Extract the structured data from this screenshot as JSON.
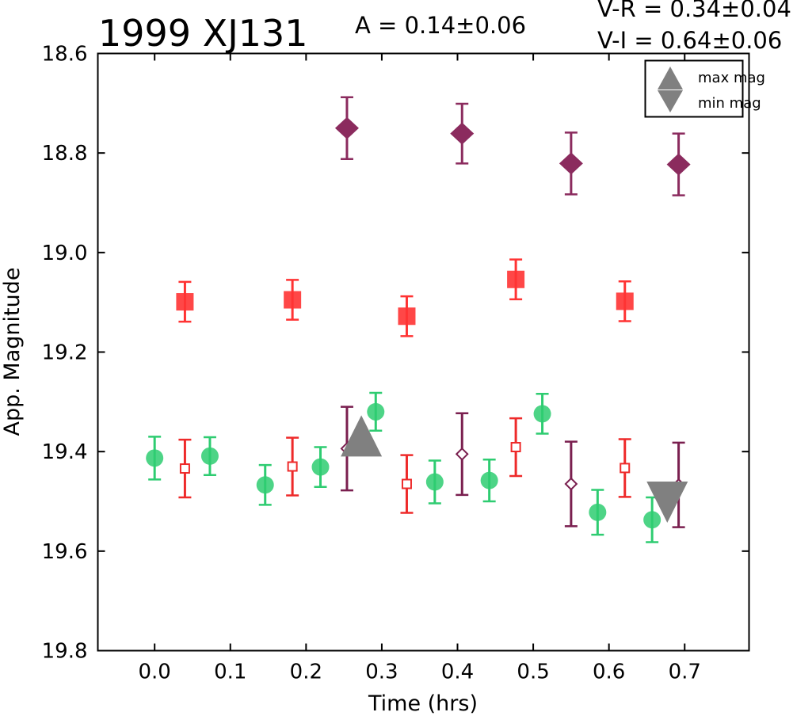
{
  "chart_data": {
    "type": "scatter",
    "title": "1999 XJ131",
    "annotations": {
      "amplitude": "A  = 0.14±0.06",
      "v_r": "V-R = 0.34±0.04",
      "v_i": "V-I  = 0.64±0.06"
    },
    "xlabel": "Time (hrs)",
    "ylabel": "App. Magnitude",
    "xlim": [
      -0.075,
      0.785
    ],
    "ylim": [
      18.6,
      19.8
    ],
    "y_inverted": true,
    "grid": false,
    "xticks": [
      0.0,
      0.1,
      0.2,
      0.3,
      0.4,
      0.5,
      0.6,
      0.7
    ],
    "xtick_labels": [
      "0.0",
      "0.1",
      "0.2",
      "0.3",
      "0.4",
      "0.5",
      "0.6",
      "0.7"
    ],
    "yticks": [
      18.6,
      18.8,
      19.0,
      19.2,
      19.4,
      19.6,
      19.8
    ],
    "ytick_labels": [
      "18.6",
      "18.8",
      "19.0",
      "19.2",
      "19.4",
      "19.6",
      "19.8"
    ],
    "legend": {
      "placement": "top-right",
      "entries": [
        {
          "label": "max mag",
          "marker": "triangle-up"
        },
        {
          "label": "min mag",
          "marker": "triangle-down"
        }
      ]
    },
    "series": [
      {
        "marker": "circle",
        "color": "#2ecc71",
        "points": [
          {
            "x": 0.0,
            "y": 19.413,
            "err": 0.043
          },
          {
            "x": 0.073,
            "y": 19.409,
            "err": 0.038
          },
          {
            "x": 0.146,
            "y": 19.467,
            "err": 0.04
          },
          {
            "x": 0.219,
            "y": 19.431,
            "err": 0.04
          },
          {
            "x": 0.292,
            "y": 19.32,
            "err": 0.038
          },
          {
            "x": 0.37,
            "y": 19.461,
            "err": 0.043
          },
          {
            "x": 0.442,
            "y": 19.458,
            "err": 0.042
          },
          {
            "x": 0.512,
            "y": 19.324,
            "err": 0.04
          },
          {
            "x": 0.585,
            "y": 19.522,
            "err": 0.045
          },
          {
            "x": 0.657,
            "y": 19.537,
            "err": 0.045
          }
        ]
      },
      {
        "marker": "square",
        "color": "#ff3333",
        "points": [
          {
            "x": 0.04,
            "y": 19.099,
            "err": 0.04
          },
          {
            "x": 0.182,
            "y": 19.095,
            "err": 0.04
          },
          {
            "x": 0.333,
            "y": 19.128,
            "err": 0.04
          },
          {
            "x": 0.477,
            "y": 19.054,
            "err": 0.04
          },
          {
            "x": 0.621,
            "y": 19.098,
            "err": 0.04
          }
        ]
      },
      {
        "marker": "square-open",
        "color": "#ee2a2a",
        "points": [
          {
            "x": 0.04,
            "y": 19.434,
            "err": 0.058
          },
          {
            "x": 0.182,
            "y": 19.43,
            "err": 0.058
          },
          {
            "x": 0.333,
            "y": 19.465,
            "err": 0.058
          },
          {
            "x": 0.477,
            "y": 19.391,
            "err": 0.058
          },
          {
            "x": 0.621,
            "y": 19.433,
            "err": 0.058
          }
        ]
      },
      {
        "marker": "diamond",
        "color": "#8b2b5e",
        "points": [
          {
            "x": 0.254,
            "y": 18.75,
            "err": 0.062
          },
          {
            "x": 0.406,
            "y": 18.761,
            "err": 0.06
          },
          {
            "x": 0.55,
            "y": 18.821,
            "err": 0.062
          },
          {
            "x": 0.692,
            "y": 18.823,
            "err": 0.062
          }
        ]
      },
      {
        "marker": "diamond-open",
        "color": "#7a1f4f",
        "points": [
          {
            "x": 0.254,
            "y": 19.394,
            "err": 0.084
          },
          {
            "x": 0.406,
            "y": 19.405,
            "err": 0.082
          },
          {
            "x": 0.55,
            "y": 19.465,
            "err": 0.085
          },
          {
            "x": 0.692,
            "y": 19.467,
            "err": 0.085
          }
        ]
      }
    ],
    "extrema": [
      {
        "type": "max",
        "marker": "triangle-up",
        "x": 0.273,
        "y": 19.37,
        "color": "#808080"
      },
      {
        "type": "min",
        "marker": "triangle-down",
        "x": 0.677,
        "y": 19.5,
        "color": "#808080"
      }
    ]
  }
}
